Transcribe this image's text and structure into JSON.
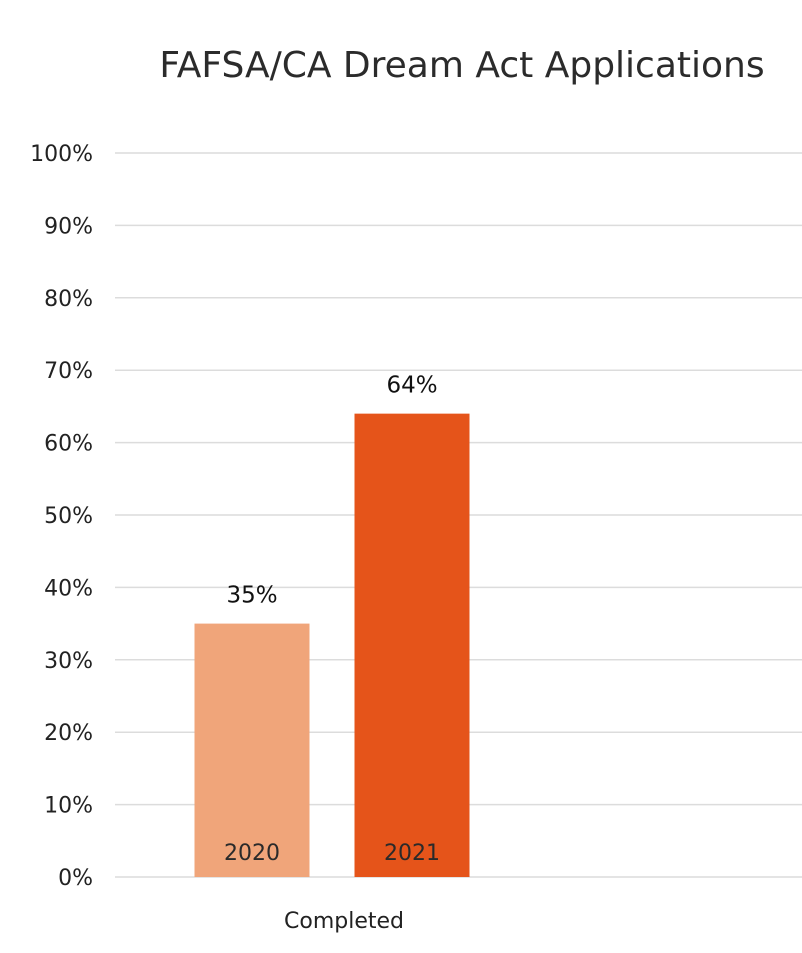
{
  "chart_data": {
    "type": "bar",
    "title": "FAFSA/CA Dream Act Applications",
    "categories": [
      "Completed"
    ],
    "series": [
      {
        "name": "2020",
        "values": [
          35
        ],
        "color": "#f0a57a"
      },
      {
        "name": "2021",
        "values": [
          64
        ],
        "color": "#e5541a"
      }
    ],
    "data_labels": [
      "35%",
      "64%"
    ],
    "y_ticks": [
      "0%",
      "10%",
      "20%",
      "30%",
      "40%",
      "50%",
      "60%",
      "70%",
      "80%",
      "90%",
      "100%"
    ],
    "ylim": [
      0,
      100
    ],
    "grid": true,
    "legend": "none (series names shown inside bars)"
  }
}
